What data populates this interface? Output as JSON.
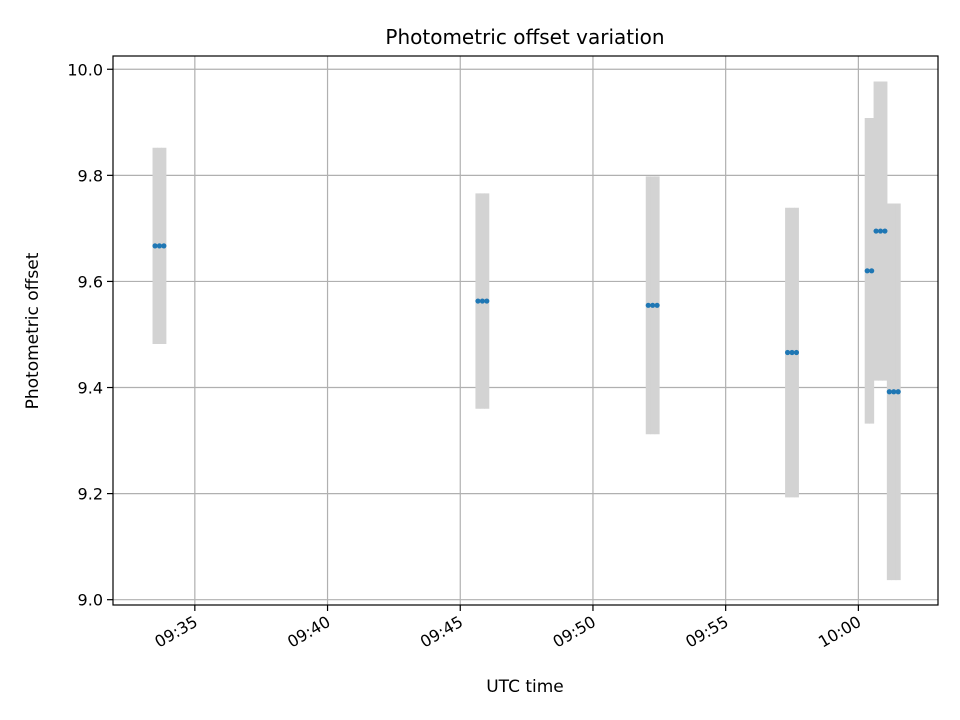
{
  "chart_data": {
    "type": "scatter",
    "title": "Photometric offset variation",
    "xlabel": "UTC time",
    "ylabel": "Photometric offset",
    "x_ticks": [
      "09:35",
      "09:40",
      "09:45",
      "09:50",
      "09:55",
      "10:00"
    ],
    "y_ticks": [
      "9.0",
      "9.2",
      "9.4",
      "9.6",
      "9.8",
      "10.0"
    ],
    "xlim": [
      "09:31:55",
      "10:03:00"
    ],
    "ylim": [
      8.99,
      10.025
    ],
    "grid": true,
    "error_bar_color": "#d3d3d3",
    "point_color": "#1f77b4",
    "points": [
      {
        "time": "09:33:30",
        "value": 9.667,
        "error": 0.185
      },
      {
        "time": "09:33:40",
        "value": 9.667,
        "error": 0.185
      },
      {
        "time": "09:33:50",
        "value": 9.667,
        "error": 0.185
      },
      {
        "time": "09:45:40",
        "value": 9.563,
        "error": 0.203
      },
      {
        "time": "09:45:50",
        "value": 9.563,
        "error": 0.203
      },
      {
        "time": "09:46:00",
        "value": 9.563,
        "error": 0.203
      },
      {
        "time": "09:52:05",
        "value": 9.555,
        "error": 0.243
      },
      {
        "time": "09:52:15",
        "value": 9.555,
        "error": 0.243
      },
      {
        "time": "09:52:25",
        "value": 9.555,
        "error": 0.243
      },
      {
        "time": "09:57:20",
        "value": 9.466,
        "error": 0.273
      },
      {
        "time": "09:57:30",
        "value": 9.466,
        "error": 0.273
      },
      {
        "time": "09:57:40",
        "value": 9.466,
        "error": 0.273
      },
      {
        "time": "10:00:20",
        "value": 9.62,
        "error": 0.288
      },
      {
        "time": "10:00:30",
        "value": 9.62,
        "error": 0.288
      },
      {
        "time": "10:00:40",
        "value": 9.695,
        "error": 0.282
      },
      {
        "time": "10:00:50",
        "value": 9.695,
        "error": 0.282
      },
      {
        "time": "10:01:00",
        "value": 9.695,
        "error": 0.282
      },
      {
        "time": "10:01:10",
        "value": 9.392,
        "error": 0.355
      },
      {
        "time": "10:01:20",
        "value": 9.392,
        "error": 0.355
      },
      {
        "time": "10:01:30",
        "value": 9.392,
        "error": 0.355
      }
    ]
  }
}
